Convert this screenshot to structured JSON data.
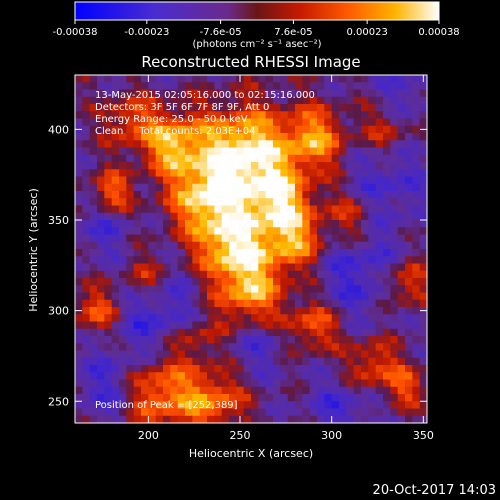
{
  "chart_data": {
    "type": "heatmap",
    "title": "Reconstructed RHESSI Image",
    "xlabel": "Heliocentric X (arcsec)",
    "ylabel": "Heliocentric Y (arcsec)",
    "xlim": [
      160,
      352
    ],
    "ylim": [
      238,
      430
    ],
    "x_ticks": [
      200,
      250,
      300,
      350
    ],
    "y_ticks": [
      250,
      300,
      350,
      400
    ],
    "colorbar": {
      "ticks": [
        "-0.00038",
        "-0.00023",
        "-7.6e-05",
        "7.6e-05",
        "0.00023",
        "0.00038"
      ],
      "tick_values": [
        -0.00038,
        -0.00023,
        -7.6e-05,
        7.6e-05,
        0.00023,
        0.00038
      ],
      "range": [
        -0.00038,
        0.00038
      ],
      "unit_label": "(photons cm⁻² s⁻¹ asec⁻²)",
      "colormap": [
        "#0000ff",
        "#5a2fb0",
        "#7a1c1c",
        "#ff3a00",
        "#ffa000",
        "#ffffff"
      ]
    },
    "annotations": [
      "13-May-2015 02:05:16.000 to 02:15:16.000",
      "Detectors: 3F 5F 6F 7F 8F 9F, Att 0",
      "Energy Range: 25.0 - 50.0 keV",
      "Clean     Total counts: 2.03E+04"
    ],
    "peak_label": "Position of Peak = [252,389]",
    "peak_position": [
      252,
      389
    ],
    "grid": false
  },
  "footer": {
    "timestamp": "20-Oct-2017 14:03"
  }
}
